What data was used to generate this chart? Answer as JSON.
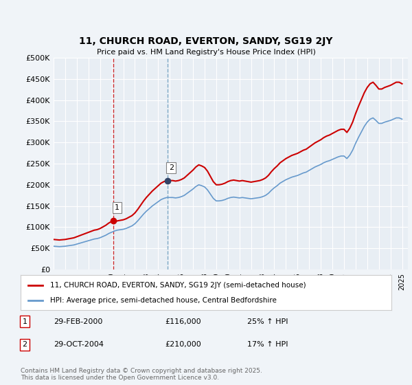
{
  "title": "11, CHURCH ROAD, EVERTON, SANDY, SG19 2JY",
  "subtitle": "Price paid vs. HM Land Registry's House Price Index (HPI)",
  "ylabel_ticks": [
    "£0",
    "£50K",
    "£100K",
    "£150K",
    "£200K",
    "£250K",
    "£300K",
    "£350K",
    "£400K",
    "£450K",
    "£500K"
  ],
  "ytick_values": [
    0,
    50000,
    100000,
    150000,
    200000,
    250000,
    300000,
    350000,
    400000,
    450000,
    500000
  ],
  "ylim": [
    0,
    500000
  ],
  "xlim_start": 1995.0,
  "xlim_end": 2025.5,
  "background_color": "#f0f4f8",
  "plot_bg_color": "#e8eef4",
  "grid_color": "#ffffff",
  "red_line_color": "#cc0000",
  "blue_line_color": "#6699cc",
  "vline1_color": "#cc0000",
  "vline2_color": "#6699bb",
  "vline1_x": 2000.16,
  "vline2_x": 2004.83,
  "marker1_x": 2000.16,
  "marker1_y": 116000,
  "marker2_x": 2004.83,
  "marker2_y": 210000,
  "legend_label_red": "11, CHURCH ROAD, EVERTON, SANDY, SG19 2JY (semi-detached house)",
  "legend_label_blue": "HPI: Average price, semi-detached house, Central Bedfordshire",
  "annotation1_label": "1",
  "annotation2_label": "2",
  "table_row1": [
    "1",
    "29-FEB-2000",
    "£116,000",
    "25% ↑ HPI"
  ],
  "table_row2": [
    "2",
    "29-OCT-2004",
    "£210,000",
    "17% ↑ HPI"
  ],
  "copyright_text": "Contains HM Land Registry data © Crown copyright and database right 2025.\nThis data is licensed under the Open Government Licence v3.0.",
  "hpi_data": {
    "dates": [
      1995.0,
      1995.25,
      1995.5,
      1995.75,
      1996.0,
      1996.25,
      1996.5,
      1996.75,
      1997.0,
      1997.25,
      1997.5,
      1997.75,
      1998.0,
      1998.25,
      1998.5,
      1998.75,
      1999.0,
      1999.25,
      1999.5,
      1999.75,
      2000.0,
      2000.25,
      2000.5,
      2000.75,
      2001.0,
      2001.25,
      2001.5,
      2001.75,
      2002.0,
      2002.25,
      2002.5,
      2002.75,
      2003.0,
      2003.25,
      2003.5,
      2003.75,
      2004.0,
      2004.25,
      2004.5,
      2004.75,
      2005.0,
      2005.25,
      2005.5,
      2005.75,
      2006.0,
      2006.25,
      2006.5,
      2006.75,
      2007.0,
      2007.25,
      2007.5,
      2007.75,
      2008.0,
      2008.25,
      2008.5,
      2008.75,
      2009.0,
      2009.25,
      2009.5,
      2009.75,
      2010.0,
      2010.25,
      2010.5,
      2010.75,
      2011.0,
      2011.25,
      2011.5,
      2011.75,
      2012.0,
      2012.25,
      2012.5,
      2012.75,
      2013.0,
      2013.25,
      2013.5,
      2013.75,
      2014.0,
      2014.25,
      2014.5,
      2014.75,
      2015.0,
      2015.25,
      2015.5,
      2015.75,
      2016.0,
      2016.25,
      2016.5,
      2016.75,
      2017.0,
      2017.25,
      2017.5,
      2017.75,
      2018.0,
      2018.25,
      2018.5,
      2018.75,
      2019.0,
      2019.25,
      2019.5,
      2019.75,
      2020.0,
      2020.25,
      2020.5,
      2020.75,
      2021.0,
      2021.25,
      2021.5,
      2021.75,
      2022.0,
      2022.25,
      2022.5,
      2022.75,
      2023.0,
      2023.25,
      2023.5,
      2023.75,
      2024.0,
      2024.25,
      2024.5,
      2024.75,
      2025.0
    ],
    "values": [
      55000,
      54500,
      54000,
      54500,
      55000,
      56000,
      57000,
      58000,
      60000,
      62000,
      64000,
      66000,
      68000,
      70000,
      72000,
      73000,
      75000,
      78000,
      81000,
      85000,
      88000,
      91000,
      93000,
      94000,
      95000,
      97000,
      100000,
      103000,
      108000,
      115000,
      123000,
      131000,
      138000,
      144000,
      150000,
      155000,
      160000,
      165000,
      168000,
      170000,
      170000,
      170000,
      169000,
      170000,
      172000,
      175000,
      180000,
      185000,
      190000,
      196000,
      200000,
      198000,
      195000,
      188000,
      178000,
      168000,
      162000,
      162000,
      163000,
      165000,
      168000,
      170000,
      171000,
      170000,
      169000,
      170000,
      169000,
      168000,
      167000,
      168000,
      169000,
      170000,
      172000,
      175000,
      180000,
      187000,
      193000,
      198000,
      204000,
      208000,
      212000,
      215000,
      218000,
      220000,
      222000,
      225000,
      228000,
      230000,
      234000,
      238000,
      242000,
      245000,
      248000,
      252000,
      255000,
      257000,
      260000,
      263000,
      266000,
      268000,
      268000,
      262000,
      270000,
      282000,
      298000,
      312000,
      325000,
      338000,
      348000,
      355000,
      358000,
      352000,
      345000,
      345000,
      348000,
      350000,
      352000,
      355000,
      358000,
      358000,
      355000
    ]
  },
  "price_data": {
    "dates": [
      2000.16,
      2004.83
    ],
    "values": [
      116000,
      210000
    ]
  }
}
